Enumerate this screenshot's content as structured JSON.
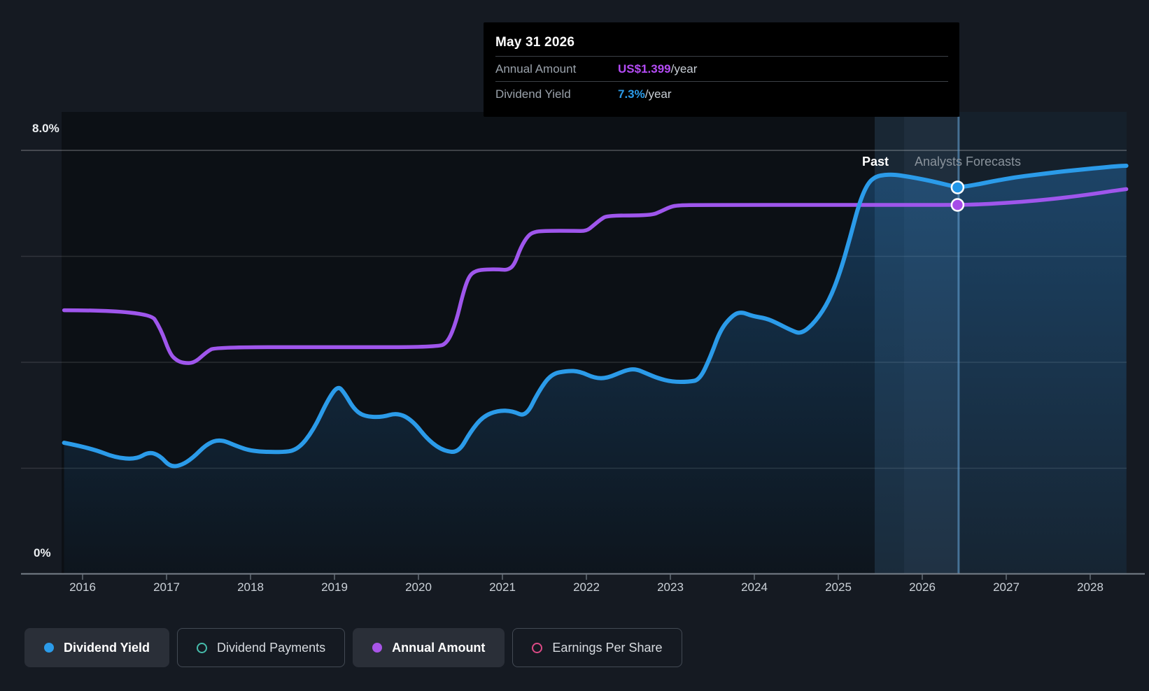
{
  "tooltip": {
    "title": "May 31 2026",
    "rows": [
      {
        "label": "Annual Amount",
        "value": "US$1.399",
        "suffix": "/year",
        "color": "#B44BF5"
      },
      {
        "label": "Dividend Yield",
        "value": "7.3%",
        "suffix": "/year",
        "color": "#2B9BE9"
      }
    ]
  },
  "labels": {
    "y_top": "8.0%",
    "y_bottom": "0%",
    "past": "Past",
    "forecast": "Analysts Forecasts"
  },
  "axis": {
    "years": [
      "2016",
      "2017",
      "2018",
      "2019",
      "2020",
      "2021",
      "2022",
      "2023",
      "2024",
      "2025",
      "2026",
      "2027",
      "2028"
    ]
  },
  "legend": [
    {
      "label": "Dividend Yield",
      "marker": "dot",
      "color": "#2B9BE9",
      "selected": true
    },
    {
      "label": "Dividend Payments",
      "marker": "ring",
      "color": "#46BCAB",
      "selected": false
    },
    {
      "label": "Annual Amount",
      "marker": "dot",
      "color": "#A855E8",
      "selected": true
    },
    {
      "label": "Earnings Per Share",
      "marker": "ring",
      "color": "#DC4A86",
      "selected": false
    }
  ],
  "chart_data": {
    "type": "line",
    "title": "Dividend yield history and forecast",
    "x_range": [
      2015.78,
      2028.43
    ],
    "past_forecast_split": 2025.43,
    "highlight_band": [
      2025.78,
      2026.44
    ],
    "yield_axis": {
      "min": 0,
      "max": 8,
      "unit": "%",
      "gridline_pcts": [
        8,
        6,
        4,
        2
      ]
    },
    "marker": {
      "date": "May 31 2026",
      "x": 2026.42,
      "yield_pct": 7.3,
      "amount_usd": 1.399
    },
    "series": [
      {
        "name": "Dividend Yield",
        "unit": "%",
        "color": "#2B9BE9",
        "area_fill": true,
        "points": [
          [
            2015.78,
            2.48
          ],
          [
            2016.1,
            2.38
          ],
          [
            2016.39,
            2.2
          ],
          [
            2016.64,
            2.17
          ],
          [
            2016.79,
            2.31
          ],
          [
            2016.92,
            2.24
          ],
          [
            2017.04,
            2.03
          ],
          [
            2017.17,
            2.05
          ],
          [
            2017.31,
            2.19
          ],
          [
            2017.48,
            2.46
          ],
          [
            2017.64,
            2.55
          ],
          [
            2017.83,
            2.42
          ],
          [
            2018.02,
            2.32
          ],
          [
            2018.35,
            2.3
          ],
          [
            2018.56,
            2.34
          ],
          [
            2018.75,
            2.72
          ],
          [
            2018.92,
            3.29
          ],
          [
            2019.04,
            3.56
          ],
          [
            2019.12,
            3.42
          ],
          [
            2019.23,
            3.12
          ],
          [
            2019.35,
            2.98
          ],
          [
            2019.56,
            2.96
          ],
          [
            2019.75,
            3.05
          ],
          [
            2019.93,
            2.9
          ],
          [
            2020.12,
            2.52
          ],
          [
            2020.31,
            2.32
          ],
          [
            2020.48,
            2.3
          ],
          [
            2020.62,
            2.69
          ],
          [
            2020.77,
            2.98
          ],
          [
            2020.95,
            3.09
          ],
          [
            2021.12,
            3.08
          ],
          [
            2021.28,
            2.97
          ],
          [
            2021.43,
            3.45
          ],
          [
            2021.58,
            3.78
          ],
          [
            2021.77,
            3.84
          ],
          [
            2021.92,
            3.83
          ],
          [
            2022.1,
            3.7
          ],
          [
            2022.25,
            3.7
          ],
          [
            2022.45,
            3.84
          ],
          [
            2022.58,
            3.88
          ],
          [
            2022.73,
            3.78
          ],
          [
            2022.85,
            3.7
          ],
          [
            2023.02,
            3.63
          ],
          [
            2023.22,
            3.63
          ],
          [
            2023.35,
            3.67
          ],
          [
            2023.48,
            4.11
          ],
          [
            2023.6,
            4.63
          ],
          [
            2023.75,
            4.9
          ],
          [
            2023.85,
            4.95
          ],
          [
            2023.98,
            4.87
          ],
          [
            2024.14,
            4.83
          ],
          [
            2024.27,
            4.74
          ],
          [
            2024.43,
            4.61
          ],
          [
            2024.56,
            4.53
          ],
          [
            2024.73,
            4.77
          ],
          [
            2024.89,
            5.16
          ],
          [
            2025.02,
            5.69
          ],
          [
            2025.14,
            6.35
          ],
          [
            2025.25,
            7.01
          ],
          [
            2025.35,
            7.38
          ],
          [
            2025.45,
            7.51
          ],
          [
            2025.56,
            7.54
          ],
          [
            2025.68,
            7.54
          ],
          [
            2025.85,
            7.5
          ],
          [
            2026.02,
            7.45
          ],
          [
            2026.22,
            7.38
          ],
          [
            2026.42,
            7.3
          ],
          [
            2026.6,
            7.34
          ],
          [
            2026.85,
            7.42
          ],
          [
            2027.1,
            7.49
          ],
          [
            2027.35,
            7.54
          ],
          [
            2027.6,
            7.59
          ],
          [
            2027.85,
            7.63
          ],
          [
            2028.1,
            7.67
          ],
          [
            2028.31,
            7.7
          ],
          [
            2028.43,
            7.71
          ]
        ]
      },
      {
        "name": "Annual Amount",
        "unit": "US$/year",
        "color": "#9F56EC",
        "area_fill": false,
        "points": [
          [
            2015.78,
            1.0
          ],
          [
            2016.79,
            1.0
          ],
          [
            2016.93,
            0.93
          ],
          [
            2017.04,
            0.835
          ],
          [
            2017.12,
            0.81
          ],
          [
            2017.2,
            0.8
          ],
          [
            2017.33,
            0.8
          ],
          [
            2017.48,
            0.843
          ],
          [
            2017.58,
            0.86
          ],
          [
            2019.0,
            0.86
          ],
          [
            2020.23,
            0.86
          ],
          [
            2020.35,
            0.878
          ],
          [
            2020.45,
            0.957
          ],
          [
            2020.53,
            1.063
          ],
          [
            2020.6,
            1.129
          ],
          [
            2020.68,
            1.15
          ],
          [
            2020.81,
            1.155
          ],
          [
            2020.97,
            1.155
          ],
          [
            2021.06,
            1.152
          ],
          [
            2021.14,
            1.17
          ],
          [
            2021.22,
            1.24
          ],
          [
            2021.31,
            1.285
          ],
          [
            2021.39,
            1.298
          ],
          [
            2021.52,
            1.301
          ],
          [
            2021.85,
            1.301
          ],
          [
            2022.0,
            1.3
          ],
          [
            2022.08,
            1.32
          ],
          [
            2022.17,
            1.344
          ],
          [
            2022.25,
            1.359
          ],
          [
            2022.77,
            1.359
          ],
          [
            2022.89,
            1.375
          ],
          [
            2023.0,
            1.392
          ],
          [
            2023.1,
            1.398
          ],
          [
            2023.35,
            1.399
          ],
          [
            2025.0,
            1.399
          ],
          [
            2026.42,
            1.399
          ],
          [
            2026.68,
            1.401
          ],
          [
            2027.02,
            1.407
          ],
          [
            2027.35,
            1.415
          ],
          [
            2027.68,
            1.426
          ],
          [
            2028.02,
            1.44
          ],
          [
            2028.27,
            1.452
          ],
          [
            2028.43,
            1.459
          ]
        ]
      }
    ],
    "legend_entries_inactive": [
      "Dividend Payments",
      "Earnings Per Share"
    ]
  },
  "colors": {
    "page_bg": "#151A22",
    "past_bg": "#0C1015",
    "forecast_bg": "#15202B",
    "grid_top": "rgba(255,255,255,0.28)",
    "grid": "rgba(255,255,255,0.12)",
    "axis_line": "#78808A",
    "indicator_line": "rgba(96,156,205,0.60)",
    "band_soft": "rgba(125,180,230,0.05)",
    "band_bright": "rgba(125,180,230,0.10)"
  }
}
